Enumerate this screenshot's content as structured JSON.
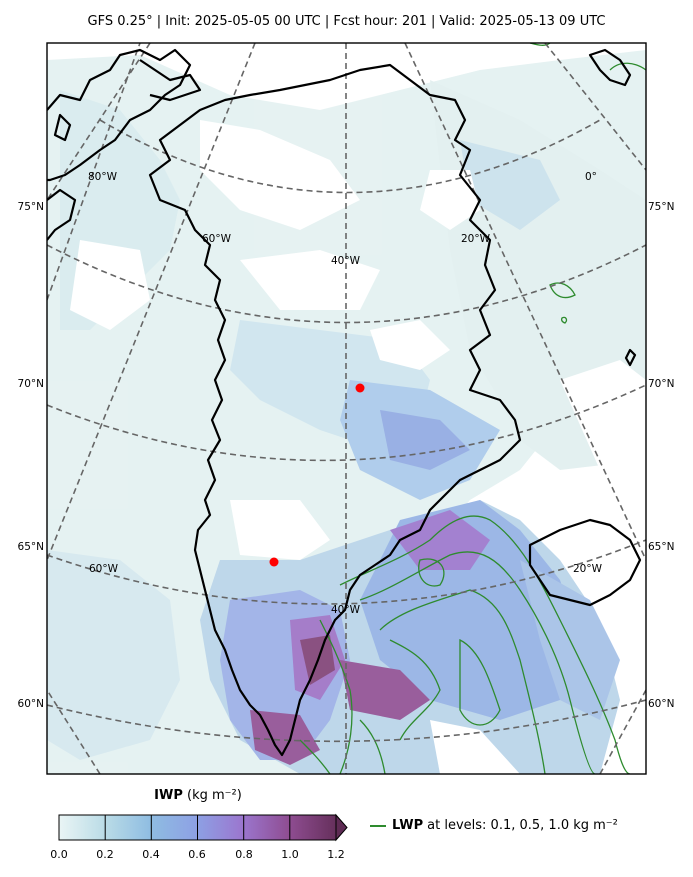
{
  "header": {
    "title": "GFS 0.25°  |  Init: 2025-05-05 00 UTC  |  Fcst hour: 201  |  Valid: 2025-05-13 09 UTC"
  },
  "map": {
    "projection": "polar stereographic (Greenland)",
    "parallel_labels_left": [
      "75°N",
      "70°N",
      "65°N",
      "60°N"
    ],
    "parallel_labels_right": [
      "75°N",
      "70°N",
      "65°N",
      "60°N"
    ],
    "meridian_labels_upper": [
      "80°W",
      "60°W",
      "40°W",
      "20°W",
      "0°"
    ],
    "meridian_labels_lower": [
      "60°W",
      "40°W",
      "20°W"
    ],
    "markers": [
      {
        "name": "red-point-1",
        "color": "#ff0000"
      },
      {
        "name": "red-point-2",
        "color": "#ff0000"
      }
    ],
    "colors": {
      "coastline": "#000000",
      "gridline": "#666666",
      "lwp_contour": "#2e8b2e",
      "iwp_low": "#e0f0f0",
      "iwp_mid": "#8fa8e0",
      "iwp_high": "#8e4a8e"
    }
  },
  "colorbar": {
    "variable": "IWP",
    "units": "(kg m⁻²)",
    "ticks": [
      "0.0",
      "0.2",
      "0.4",
      "0.6",
      "0.8",
      "1.0",
      "1.2"
    ],
    "colors": [
      "#e6f3f3",
      "#aad2e4",
      "#8aaae6",
      "#9b7fd6",
      "#9a55a6",
      "#7e3f74",
      "#5e2b54"
    ],
    "extend": "max"
  },
  "legend": {
    "lwp_label": "LWP",
    "lwp_text": "at levels: 0.1, 0.5, 1.0  kg m⁻²"
  }
}
